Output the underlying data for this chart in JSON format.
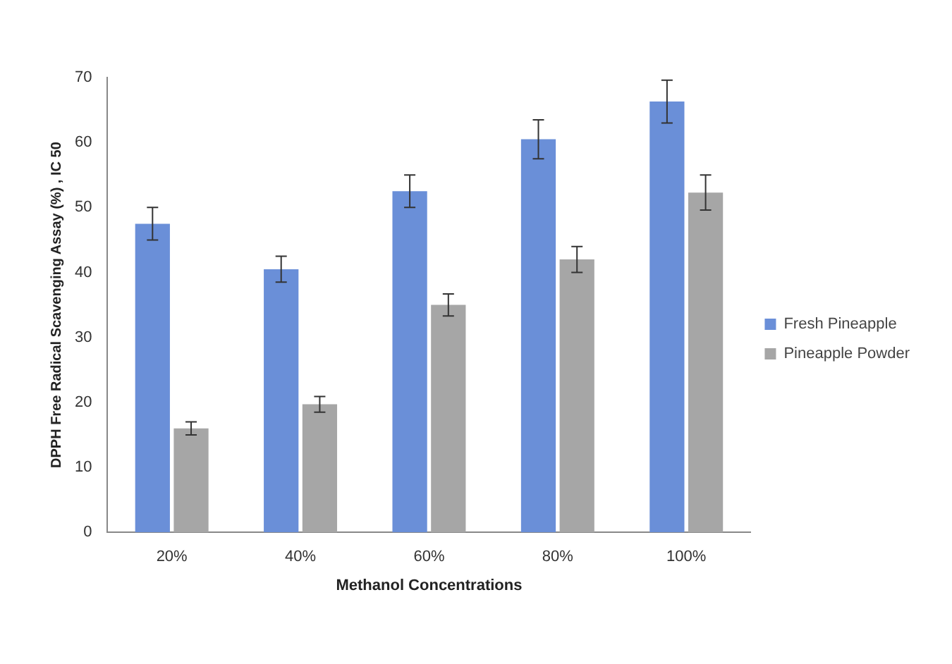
{
  "chart_data": {
    "type": "bar",
    "xlabel": "Methanol Concentrations",
    "ylabel": "DPPH Free Radical Scavenging Assay (%) , IC 50",
    "categories": [
      "20%",
      "40%",
      "60%",
      "80%",
      "100%"
    ],
    "series": [
      {
        "name": "Fresh Pineapple",
        "color": "#6a8fd8",
        "values": [
          47.5,
          40.5,
          52.5,
          60.5,
          66.3
        ],
        "errors": [
          2.5,
          2,
          2.5,
          3,
          3.3
        ]
      },
      {
        "name": "Pineapple Powder",
        "color": "#a6a6a6",
        "values": [
          16,
          19.7,
          35,
          42,
          52.3
        ],
        "errors": [
          1,
          1.2,
          1.7,
          2,
          2.7
        ]
      }
    ],
    "ylim": [
      0,
      70
    ],
    "yticks": [
      0,
      10,
      20,
      30,
      40,
      50,
      60,
      70
    ],
    "grid": false,
    "legend": "right"
  }
}
